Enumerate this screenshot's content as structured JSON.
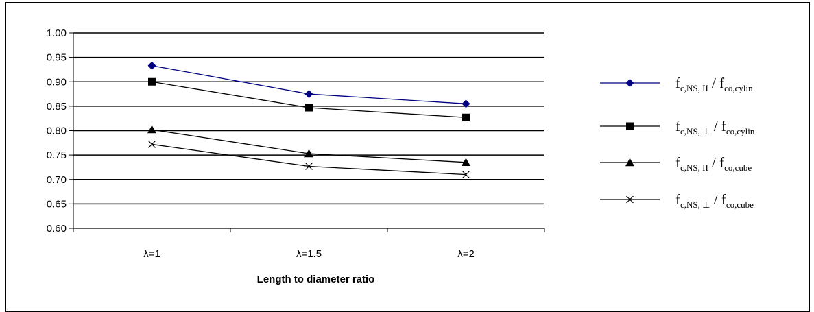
{
  "chart_data": {
    "type": "line",
    "title": "",
    "xlabel": "Length to diameter ratio",
    "ylabel": "",
    "categories": [
      "λ=1",
      "λ=1.5",
      "λ=2"
    ],
    "ylim": [
      0.6,
      1.0
    ],
    "ytick_step": 0.05,
    "ytick_labels": [
      "0.60",
      "0.65",
      "0.70",
      "0.75",
      "0.80",
      "0.85",
      "0.90",
      "0.95",
      "1.00"
    ],
    "grid": true,
    "legend_position": "right",
    "series": [
      {
        "name": "f c,NS, II / f co,cylin",
        "name_parts": {
          "main1": "f",
          "sub1": "c,NS, II",
          "slash": " / ",
          "main2": "f",
          "sub2": "co,cylin"
        },
        "marker": "diamond",
        "color": "#000080",
        "values": [
          0.933,
          0.875,
          0.855
        ]
      },
      {
        "name": "f c,NS, ⊥ / f co,cylin",
        "name_parts": {
          "main1": "f",
          "sub1": "c,NS, ⊥",
          "slash": " / ",
          "main2": "f",
          "sub2": "co,cylin"
        },
        "marker": "square",
        "color": "#000000",
        "values": [
          0.9,
          0.847,
          0.827
        ]
      },
      {
        "name": "f c,NS, II / f co,cube",
        "name_parts": {
          "main1": "f",
          "sub1": "c,NS, II",
          "slash": " / ",
          "main2": "f",
          "sub2": "co,cube"
        },
        "marker": "triangle",
        "color": "#000000",
        "values": [
          0.802,
          0.753,
          0.735
        ]
      },
      {
        "name": "f c,NS, ⊥ / f co,cube",
        "name_parts": {
          "main1": "f",
          "sub1": "c,NS, ⊥",
          "slash": " / ",
          "main2": "f",
          "sub2": "co,cube"
        },
        "marker": "x",
        "color": "#000000",
        "values": [
          0.772,
          0.727,
          0.71
        ]
      }
    ]
  }
}
